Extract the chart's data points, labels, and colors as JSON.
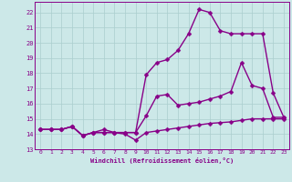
{
  "xlabel": "Windchill (Refroidissement éolien,°C)",
  "background_color": "#cce8e8",
  "grid_color": "#aacece",
  "line_color": "#880088",
  "xlim": [
    -0.5,
    23.5
  ],
  "ylim": [
    13.0,
    22.7
  ],
  "yticks": [
    13,
    14,
    15,
    16,
    17,
    18,
    19,
    20,
    21,
    22
  ],
  "xticks": [
    0,
    1,
    2,
    3,
    4,
    5,
    6,
    7,
    8,
    9,
    10,
    11,
    12,
    13,
    14,
    15,
    16,
    17,
    18,
    19,
    20,
    21,
    22,
    23
  ],
  "line1_x": [
    0,
    1,
    2,
    3,
    4,
    5,
    6,
    7,
    8,
    9,
    10,
    11,
    12,
    13,
    14,
    15,
    16,
    17,
    18,
    19,
    20,
    21,
    22,
    23
  ],
  "line1_y": [
    14.3,
    14.3,
    14.3,
    14.5,
    13.9,
    14.1,
    14.1,
    14.1,
    14.0,
    13.6,
    14.1,
    14.2,
    14.3,
    14.4,
    14.5,
    14.6,
    14.7,
    14.75,
    14.8,
    14.9,
    15.0,
    15.0,
    15.0,
    15.0
  ],
  "line2_x": [
    0,
    1,
    2,
    3,
    4,
    5,
    6,
    7,
    8,
    9,
    10,
    11,
    12,
    13,
    14,
    15,
    16,
    17,
    18,
    19,
    20,
    21,
    22,
    23
  ],
  "line2_y": [
    14.3,
    14.3,
    14.3,
    14.5,
    13.9,
    14.1,
    14.1,
    14.1,
    14.1,
    14.1,
    15.2,
    16.5,
    16.6,
    15.9,
    16.0,
    16.1,
    16.3,
    16.5,
    16.8,
    18.7,
    17.2,
    17.0,
    15.1,
    15.1
  ],
  "line3_x": [
    0,
    1,
    2,
    3,
    4,
    5,
    6,
    7,
    8,
    9,
    10,
    11,
    12,
    13,
    14,
    15,
    16,
    17,
    18,
    19,
    20,
    21,
    22,
    23
  ],
  "line3_y": [
    14.3,
    14.3,
    14.3,
    14.5,
    13.9,
    14.1,
    14.3,
    14.1,
    14.1,
    14.1,
    17.9,
    18.7,
    18.9,
    19.5,
    20.6,
    22.2,
    22.0,
    20.8,
    20.6,
    20.6,
    20.6,
    20.6,
    16.7,
    15.1
  ],
  "markersize": 2.5,
  "linewidth": 1.0
}
